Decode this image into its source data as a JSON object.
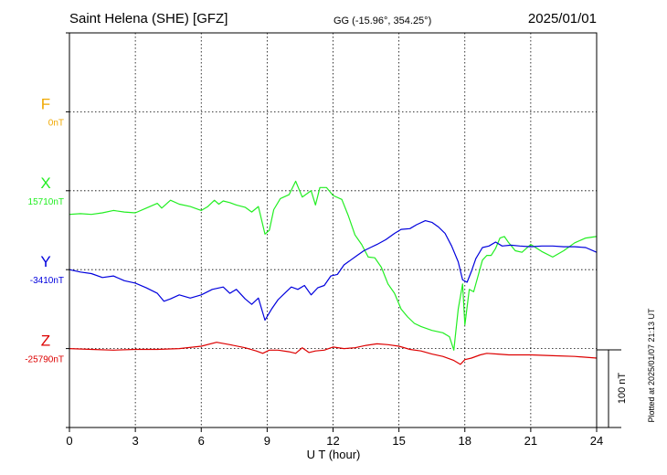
{
  "chart_data": {
    "type": "line",
    "title": "Saint Helena (SHE)  [GFZ]",
    "coordinates": "GG (-15.96°, 354.25°)",
    "date": "2025/01/01",
    "xlabel": "U T (hour)",
    "xlim": [
      0,
      24
    ],
    "xticks": [
      "0",
      "3",
      "6",
      "9",
      "12",
      "15",
      "18",
      "21",
      "24"
    ],
    "grid": true,
    "scale_bar_label": "100 nT",
    "footer": "Plotted at 2025/01/07 21:13 UT",
    "series": [
      {
        "name": "F",
        "baseline_label": "0nT",
        "color": "#f0a800",
        "baseline_offset": 0,
        "points": []
      },
      {
        "name": "X",
        "baseline_label": "15710nT",
        "color": "#22ee22",
        "baseline_offset": 0,
        "points": [
          [
            0,
            -30
          ],
          [
            0.5,
            -29
          ],
          [
            1,
            -30
          ],
          [
            1.5,
            -28
          ],
          [
            2,
            -25
          ],
          [
            2.5,
            -27
          ],
          [
            3,
            -28
          ],
          [
            3.5,
            -22
          ],
          [
            4,
            -16
          ],
          [
            4.2,
            -22
          ],
          [
            4.6,
            -12
          ],
          [
            5,
            -17
          ],
          [
            5.5,
            -20
          ],
          [
            6,
            -25
          ],
          [
            6.3,
            -20
          ],
          [
            6.6,
            -12
          ],
          [
            6.8,
            -17
          ],
          [
            7,
            -13
          ],
          [
            7.3,
            -15
          ],
          [
            7.6,
            -18
          ],
          [
            8,
            -21
          ],
          [
            8.3,
            -27
          ],
          [
            8.6,
            -20
          ],
          [
            8.9,
            -55
          ],
          [
            9.1,
            -50
          ],
          [
            9.3,
            -24
          ],
          [
            9.6,
            -10
          ],
          [
            10,
            -5
          ],
          [
            10.3,
            12
          ],
          [
            10.6,
            -8
          ],
          [
            11,
            0
          ],
          [
            11.2,
            -18
          ],
          [
            11.4,
            4
          ],
          [
            11.7,
            4
          ],
          [
            12,
            -6
          ],
          [
            12.4,
            -11
          ],
          [
            12.7,
            -32
          ],
          [
            13,
            -56
          ],
          [
            13.3,
            -68
          ],
          [
            13.6,
            -84
          ],
          [
            13.9,
            -85
          ],
          [
            14.2,
            -97
          ],
          [
            14.5,
            -118
          ],
          [
            14.8,
            -130
          ],
          [
            15.1,
            -150
          ],
          [
            15.4,
            -160
          ],
          [
            15.7,
            -168
          ],
          [
            16,
            -172
          ],
          [
            16.5,
            -177
          ],
          [
            17,
            -180
          ],
          [
            17.3,
            -185
          ],
          [
            17.5,
            -202
          ],
          [
            17.7,
            -150
          ],
          [
            17.9,
            -118
          ],
          [
            18,
            -170
          ],
          [
            18.2,
            -125
          ],
          [
            18.4,
            -128
          ],
          [
            18.6,
            -108
          ],
          [
            18.8,
            -88
          ],
          [
            19,
            -82
          ],
          [
            19.2,
            -82
          ],
          [
            19.4,
            -73
          ],
          [
            19.6,
            -60
          ],
          [
            19.8,
            -58
          ],
          [
            20,
            -66
          ],
          [
            20.3,
            -76
          ],
          [
            20.6,
            -78
          ],
          [
            21,
            -68
          ],
          [
            21.5,
            -77
          ],
          [
            22,
            -84
          ],
          [
            22.5,
            -76
          ],
          [
            23,
            -66
          ],
          [
            23.5,
            -60
          ],
          [
            24,
            -58
          ]
        ]
      },
      {
        "name": "Y",
        "baseline_label": "-3410nT",
        "color": "#0000dd",
        "baseline_offset": 0,
        "points": [
          [
            0,
            0
          ],
          [
            0.5,
            -3
          ],
          [
            1,
            -5
          ],
          [
            1.5,
            -10
          ],
          [
            2,
            -8
          ],
          [
            2.5,
            -14
          ],
          [
            3,
            -17
          ],
          [
            3.5,
            -23
          ],
          [
            4,
            -30
          ],
          [
            4.3,
            -40
          ],
          [
            4.6,
            -37
          ],
          [
            5,
            -32
          ],
          [
            5.5,
            -36
          ],
          [
            6,
            -32
          ],
          [
            6.5,
            -25
          ],
          [
            7,
            -22
          ],
          [
            7.3,
            -30
          ],
          [
            7.6,
            -25
          ],
          [
            8,
            -37
          ],
          [
            8.3,
            -44
          ],
          [
            8.6,
            -36
          ],
          [
            8.9,
            -64
          ],
          [
            9.2,
            -50
          ],
          [
            9.5,
            -38
          ],
          [
            9.8,
            -30
          ],
          [
            10.1,
            -22
          ],
          [
            10.4,
            -25
          ],
          [
            10.7,
            -20
          ],
          [
            11,
            -32
          ],
          [
            11.3,
            -23
          ],
          [
            11.6,
            -20
          ],
          [
            11.9,
            -8
          ],
          [
            12.2,
            -6
          ],
          [
            12.5,
            6
          ],
          [
            12.8,
            12
          ],
          [
            13.1,
            18
          ],
          [
            13.4,
            24
          ],
          [
            13.7,
            28
          ],
          [
            14,
            32
          ],
          [
            14.4,
            38
          ],
          [
            14.8,
            46
          ],
          [
            15.1,
            51
          ],
          [
            15.5,
            52
          ],
          [
            15.8,
            57
          ],
          [
            16.2,
            62
          ],
          [
            16.5,
            60
          ],
          [
            16.8,
            54
          ],
          [
            17.1,
            46
          ],
          [
            17.4,
            30
          ],
          [
            17.7,
            10
          ],
          [
            17.9,
            -13
          ],
          [
            18.1,
            -16
          ],
          [
            18.3,
            -2
          ],
          [
            18.5,
            14
          ],
          [
            18.8,
            28
          ],
          [
            19.1,
            30
          ],
          [
            19.4,
            35
          ],
          [
            19.7,
            30
          ],
          [
            20.1,
            31
          ],
          [
            20.5,
            30
          ],
          [
            21,
            29
          ],
          [
            21.5,
            30
          ],
          [
            22,
            30
          ],
          [
            22.5,
            29
          ],
          [
            23,
            29
          ],
          [
            23.5,
            28
          ],
          [
            24,
            22
          ]
        ]
      },
      {
        "name": "Z",
        "baseline_label": "-25790nT",
        "color": "#dd0000",
        "baseline_offset": 0,
        "points": [
          [
            0,
            0
          ],
          [
            1,
            -1
          ],
          [
            2,
            -2
          ],
          [
            3,
            -1
          ],
          [
            4,
            -1
          ],
          [
            5,
            0
          ],
          [
            6,
            3
          ],
          [
            6.7,
            8
          ],
          [
            7.3,
            5
          ],
          [
            8,
            1
          ],
          [
            8.5,
            -3
          ],
          [
            8.8,
            -6
          ],
          [
            9.1,
            -2
          ],
          [
            9.5,
            -2
          ],
          [
            10,
            -4
          ],
          [
            10.3,
            -6
          ],
          [
            10.6,
            1
          ],
          [
            10.9,
            -5
          ],
          [
            11.2,
            -3
          ],
          [
            11.6,
            -2
          ],
          [
            12,
            2
          ],
          [
            12.5,
            0
          ],
          [
            13,
            1
          ],
          [
            13.5,
            4
          ],
          [
            14,
            6
          ],
          [
            14.5,
            5
          ],
          [
            15,
            3
          ],
          [
            15.5,
            -1
          ],
          [
            16,
            -3
          ],
          [
            16.5,
            -7
          ],
          [
            17,
            -10
          ],
          [
            17.5,
            -15
          ],
          [
            17.8,
            -20
          ],
          [
            18,
            -14
          ],
          [
            18.3,
            -12
          ],
          [
            18.7,
            -8
          ],
          [
            19,
            -6
          ],
          [
            19.5,
            -7
          ],
          [
            20,
            -8
          ],
          [
            21,
            -8
          ],
          [
            22,
            -9
          ],
          [
            23,
            -10
          ],
          [
            24,
            -12
          ]
        ]
      }
    ]
  }
}
